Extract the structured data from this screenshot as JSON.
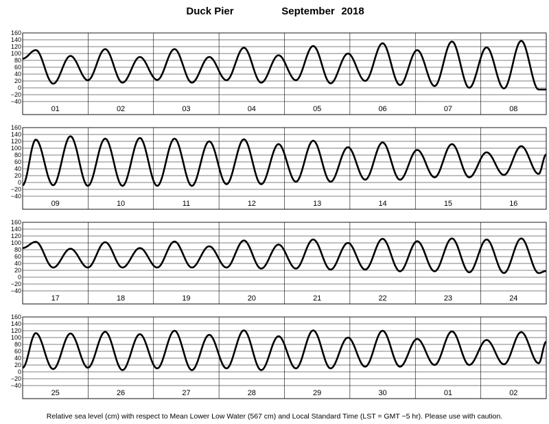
{
  "chart_data": {
    "type": "line",
    "title_location": "Duck Pier",
    "title_month": "September",
    "title_year": "2018",
    "footnote": "Relative sea level (cm) with respect to Mean Lower Low Water (567 cm) and Local Standard Time (LST = GMT −5 hr). Please use with caution.",
    "y_ticks": [
      "160",
      "140",
      "120",
      "100",
      "80",
      "60",
      "40",
      "20",
      "0",
      "−20",
      "−40"
    ],
    "ylim": [
      -40,
      160
    ],
    "grid": "horizontal every 20 cm, vertical at day boundaries",
    "line_color": "#000000",
    "panels": [
      {
        "day_labels": [
          "01",
          "02",
          "03",
          "04",
          "05",
          "06",
          "07",
          "08"
        ],
        "highs": [
          110,
          93,
          113,
          90,
          113,
          90,
          117,
          95,
          122,
          100,
          130,
          110,
          135,
          118,
          137
        ],
        "lows": [
          12,
          22,
          15,
          23,
          15,
          22,
          15,
          22,
          13,
          20,
          8,
          5,
          0,
          -2,
          -5
        ],
        "start_level": 85,
        "end_level": -5
      },
      {
        "day_labels": [
          "09",
          "10",
          "11",
          "12",
          "13",
          "14",
          "15",
          "16"
        ],
        "highs": [
          125,
          135,
          128,
          130,
          128,
          120,
          126,
          112,
          122,
          103,
          117,
          95,
          112,
          88,
          106
        ],
        "lows": [
          -8,
          -10,
          -10,
          -10,
          -10,
          -5,
          -5,
          2,
          2,
          8,
          8,
          15,
          15,
          22,
          25
        ],
        "start_level": -8,
        "end_level": 82
      },
      {
        "day_labels": [
          "17",
          "18",
          "19",
          "20",
          "21",
          "22",
          "23",
          "24"
        ],
        "highs": [
          103,
          83,
          102,
          85,
          104,
          90,
          107,
          95,
          110,
          100,
          112,
          105,
          113,
          110,
          113
        ],
        "lows": [
          28,
          28,
          28,
          28,
          28,
          28,
          25,
          25,
          22,
          22,
          17,
          17,
          14,
          12,
          12
        ],
        "start_level": 85,
        "end_level": 18
      },
      {
        "day_labels": [
          "25",
          "26",
          "27",
          "28",
          "29",
          "30",
          "01",
          "02"
        ],
        "highs": [
          113,
          112,
          117,
          110,
          120,
          108,
          121,
          104,
          121,
          100,
          120,
          96,
          118,
          93,
          116
        ],
        "lows": [
          8,
          12,
          5,
          10,
          5,
          10,
          5,
          10,
          10,
          15,
          15,
          20,
          20,
          22,
          25
        ],
        "start_level": 12,
        "end_level": 88
      }
    ]
  }
}
